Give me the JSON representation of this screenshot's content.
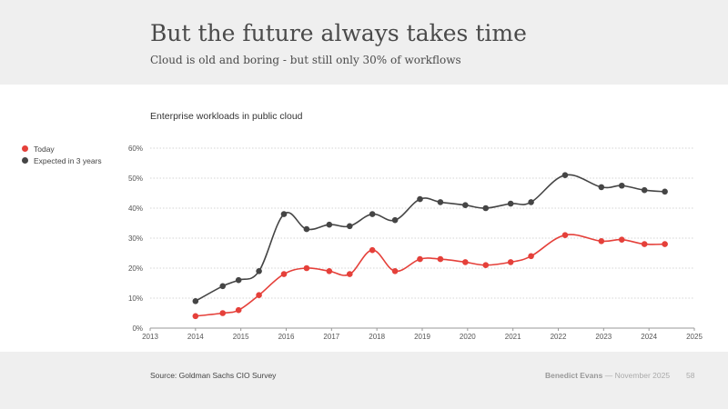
{
  "slide": {
    "title": "But the future always takes time",
    "subtitle": "Cloud is old and boring - but still only 30% of workflows",
    "source": "Source: Goldman Sachs CIO Survey",
    "author": "Benedict Evans",
    "date": "November 2025",
    "separator": "—",
    "page_number": "58"
  },
  "colors": {
    "today": "#e5403a",
    "expected": "#454545",
    "grid": "#c8c8c8",
    "axis": "#999999"
  },
  "chart_data": {
    "type": "line",
    "title": "Enterprise workloads in public cloud",
    "xlim": [
      2013,
      2025
    ],
    "ylim": [
      0,
      60
    ],
    "x_ticks": [
      "2013",
      "2014",
      "2015",
      "2016",
      "2017",
      "2018",
      "2019",
      "2020",
      "2021",
      "2022",
      "2023",
      "2024",
      "2025"
    ],
    "y_ticks": [
      "0%",
      "10%",
      "20%",
      "30%",
      "40%",
      "50%",
      "60%"
    ],
    "y_tick_values": [
      0,
      10,
      20,
      30,
      40,
      50,
      60
    ],
    "grid": "horizontal",
    "legend_position": "left",
    "series": [
      {
        "name": "Today",
        "color": "#e5403a",
        "x": [
          2014.0,
          2014.6,
          2014.95,
          2015.4,
          2015.95,
          2016.45,
          2016.95,
          2017.4,
          2017.9,
          2018.4,
          2018.95,
          2019.4,
          2019.95,
          2020.4,
          2020.95,
          2021.4,
          2022.15,
          2022.95,
          2023.4,
          2023.9,
          2024.35
        ],
        "y": [
          4,
          5,
          6,
          11,
          18,
          20,
          19,
          18,
          26,
          19,
          23,
          23,
          22,
          21,
          22,
          24,
          31,
          29,
          29.5,
          28,
          28
        ]
      },
      {
        "name": "Expected in 3 years",
        "color": "#454545",
        "x": [
          2014.0,
          2014.6,
          2014.95,
          2015.4,
          2015.95,
          2016.45,
          2016.95,
          2017.4,
          2017.9,
          2018.4,
          2018.95,
          2019.4,
          2019.95,
          2020.4,
          2020.95,
          2021.4,
          2022.15,
          2022.95,
          2023.4,
          2023.9,
          2024.35
        ],
        "y": [
          9,
          14,
          16,
          19,
          38,
          33,
          34.5,
          34,
          38,
          36,
          43,
          42,
          41,
          40,
          41.5,
          42,
          51,
          47,
          47.5,
          46,
          45.5
        ]
      }
    ]
  }
}
